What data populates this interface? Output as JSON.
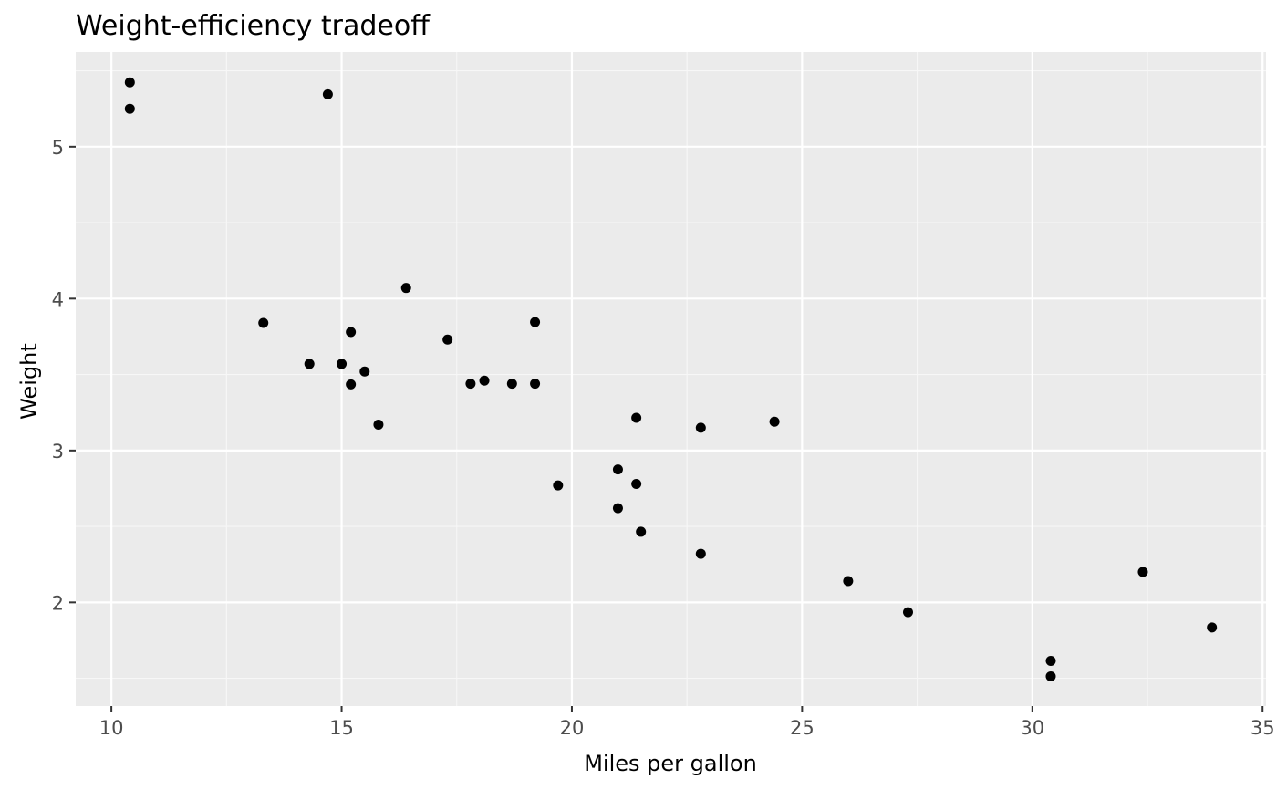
{
  "chart_data": {
    "type": "scatter",
    "title": "Weight-efficiency tradeoff",
    "xlabel": "Miles per gallon",
    "ylabel": "Weight",
    "xlim": [
      9.225,
      35.075
    ],
    "ylim": [
      1.31745,
      5.62355
    ],
    "x_ticks": [
      10,
      15,
      20,
      25,
      30,
      35
    ],
    "x_tick_labels": [
      "10",
      "15",
      "20",
      "25",
      "30",
      "35"
    ],
    "x_minor_ticks": [
      12.5,
      17.5,
      22.5,
      27.5,
      32.5
    ],
    "y_ticks": [
      2,
      3,
      4,
      5
    ],
    "y_tick_labels": [
      "2",
      "3",
      "4",
      "5"
    ],
    "y_minor_ticks": [
      1.5,
      2.5,
      3.5,
      4.5,
      5.5
    ],
    "grid": true,
    "legend": "none",
    "colors": {
      "panel_background": "#ebebeb",
      "grid_major": "#ffffff",
      "grid_minor": "#f7f7f7",
      "point": "#000000",
      "tick": "#333333"
    },
    "points": [
      {
        "x": 21.0,
        "y": 2.62
      },
      {
        "x": 21.0,
        "y": 2.875
      },
      {
        "x": 22.8,
        "y": 2.32
      },
      {
        "x": 21.4,
        "y": 3.215
      },
      {
        "x": 18.7,
        "y": 3.44
      },
      {
        "x": 18.1,
        "y": 3.46
      },
      {
        "x": 14.3,
        "y": 3.57
      },
      {
        "x": 24.4,
        "y": 3.19
      },
      {
        "x": 22.8,
        "y": 3.15
      },
      {
        "x": 19.2,
        "y": 3.44
      },
      {
        "x": 17.8,
        "y": 3.44
      },
      {
        "x": 16.4,
        "y": 4.07
      },
      {
        "x": 17.3,
        "y": 3.73
      },
      {
        "x": 15.2,
        "y": 3.78
      },
      {
        "x": 10.4,
        "y": 5.25
      },
      {
        "x": 10.4,
        "y": 5.424
      },
      {
        "x": 14.7,
        "y": 5.345
      },
      {
        "x": 32.4,
        "y": 2.2
      },
      {
        "x": 30.4,
        "y": 1.615
      },
      {
        "x": 33.9,
        "y": 1.835
      },
      {
        "x": 21.5,
        "y": 2.465
      },
      {
        "x": 15.5,
        "y": 3.52
      },
      {
        "x": 15.2,
        "y": 3.435
      },
      {
        "x": 13.3,
        "y": 3.84
      },
      {
        "x": 19.2,
        "y": 3.845
      },
      {
        "x": 27.3,
        "y": 1.935
      },
      {
        "x": 26.0,
        "y": 2.14
      },
      {
        "x": 30.4,
        "y": 1.513
      },
      {
        "x": 15.8,
        "y": 3.17
      },
      {
        "x": 19.7,
        "y": 2.77
      },
      {
        "x": 15.0,
        "y": 3.57
      },
      {
        "x": 21.4,
        "y": 2.78
      }
    ]
  }
}
